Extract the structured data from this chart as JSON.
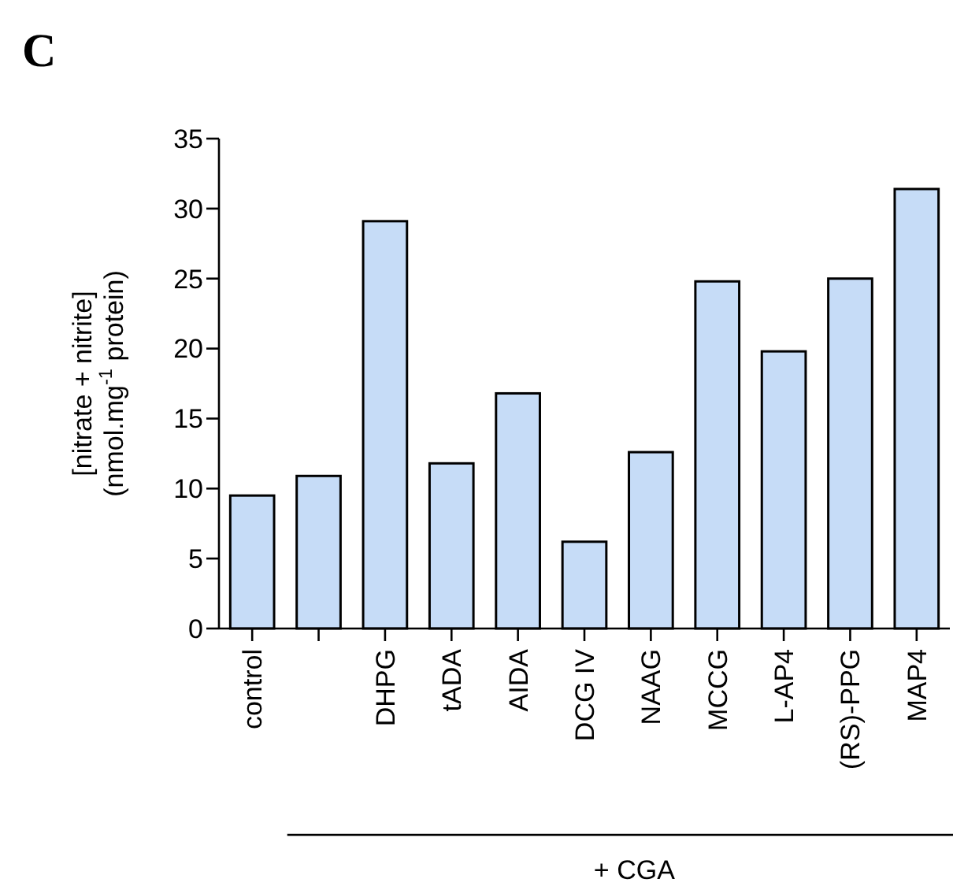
{
  "chart_data": {
    "type": "bar",
    "title": "C",
    "categories": [
      "control",
      null,
      "DHPG",
      "tADA",
      "AIDA",
      "DCG IV",
      "NAAG",
      "MCCG",
      "L-AP4",
      "(RS)-PPG",
      "MAP4"
    ],
    "values": [
      9.5,
      10.9,
      29.1,
      11.8,
      16.8,
      6.2,
      12.6,
      24.8,
      19.8,
      25.0,
      31.4
    ],
    "color": "#c6dcf7",
    "ylabel": "[nitrate + nitrite]\n(nmol.mg$^{-1}$ protein)",
    "ylim": [
      0,
      35
    ],
    "yticks": [
      0,
      5,
      10,
      15,
      20,
      25,
      30,
      35
    ],
    "annotations": [
      "+ CGA"
    ],
    "grid": false
  }
}
